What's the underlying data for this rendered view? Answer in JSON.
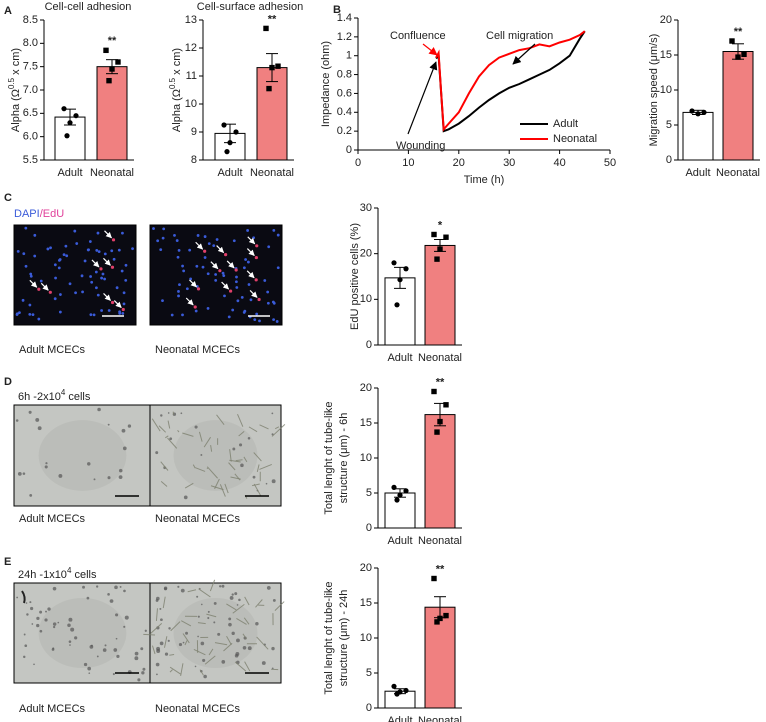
{
  "panel_labels": [
    "A",
    "B",
    "C",
    "D",
    "E"
  ],
  "chart_data": [
    {
      "type": "bar",
      "title": "Cell-cell adhesion",
      "y_label": [
        "Alpha (Ω",
        "0.5",
        " x cm)"
      ],
      "categories": [
        "Adult",
        "Neonatal"
      ],
      "values": [
        6.42,
        7.5
      ],
      "errors": [
        0.17,
        0.15
      ],
      "points": [
        [
          6.6,
          6.45,
          6.3,
          6.02
        ],
        [
          7.85,
          7.6,
          7.45,
          7.2
        ]
      ],
      "colors": [
        "#ffffff",
        "#f08080"
      ],
      "ylim": [
        5.5,
        8.5
      ],
      "yticks": [
        5.5,
        {
          "value": 6,
          "label": "6.0"
        },
        6.5,
        {
          "value": 7,
          "label": "7.0"
        },
        7.5,
        {
          "value": 8,
          "label": "8.0"
        },
        8.5
      ],
      "significance": "**"
    },
    {
      "type": "bar",
      "title": "Cell-surface adhesion",
      "y_label": [
        "Alpha (Ω",
        "0.5",
        " x cm)"
      ],
      "categories": [
        "Adult",
        "Neonatal"
      ],
      "values": [
        8.95,
        11.3
      ],
      "errors": [
        0.33,
        0.5
      ],
      "points": [
        [
          9.25,
          9.0,
          8.62,
          8.3
        ],
        [
          12.7,
          11.35,
          11.3,
          10.55
        ]
      ],
      "colors": [
        "#ffffff",
        "#f08080"
      ],
      "ylim": [
        8,
        13
      ],
      "yticks": [
        8,
        9,
        10,
        11,
        12,
        13
      ],
      "significance": "**"
    },
    {
      "type": "line",
      "x_label": "Time (h)",
      "y_label": "Impedance (ohm)",
      "x": [
        15.5,
        16,
        16.5,
        17,
        18,
        20,
        22,
        24,
        26,
        28,
        30,
        32,
        34,
        36,
        38,
        40,
        42,
        44,
        45
      ],
      "series": [
        {
          "name": "Adult",
          "color": "#000000",
          "values": [
            0.97,
            1.0,
            0.6,
            0.2,
            0.22,
            0.28,
            0.36,
            0.45,
            0.53,
            0.6,
            0.66,
            0.7,
            0.75,
            0.8,
            0.85,
            0.92,
            1.0,
            1.18,
            1.26
          ]
        },
        {
          "name": "Neonatal",
          "color": "#ff0000",
          "values": [
            0.98,
            1.03,
            0.6,
            0.22,
            0.28,
            0.4,
            0.6,
            0.78,
            0.9,
            0.98,
            1.02,
            1.06,
            1.08,
            1.12,
            1.1,
            1.14,
            1.17,
            1.22,
            1.26
          ]
        }
      ],
      "xlim": [
        0,
        50
      ],
      "xticks": [
        0,
        10,
        20,
        30,
        40,
        50
      ],
      "ylim": [
        0,
        1.4
      ],
      "yticks": [
        0,
        0.2,
        0.4,
        0.6,
        0.8,
        1,
        1.2,
        1.4
      ],
      "annotations": [
        "Confluence",
        "Cell migration",
        "Wounding"
      ],
      "legend": "lower right"
    },
    {
      "type": "bar",
      "y_label": "Migration speed (μm/s)",
      "categories": [
        "Adult",
        "Neonatal"
      ],
      "values": [
        6.8,
        15.5
      ],
      "errors": [
        0.3,
        1.1
      ],
      "points": [
        [
          7.0,
          6.8,
          6.6
        ],
        [
          17.0,
          15.1,
          14.7
        ]
      ],
      "colors": [
        "#ffffff",
        "#f08080"
      ],
      "ylim": [
        0,
        20
      ],
      "yticks": [
        0,
        5,
        10,
        15,
        20
      ],
      "significance": "**"
    },
    {
      "type": "bar",
      "y_label": "EdU positive cells (%)",
      "categories": [
        "Adult",
        "Neonatal"
      ],
      "values": [
        14.7,
        21.8
      ],
      "errors": [
        2.3,
        1.3
      ],
      "points": [
        [
          18,
          16.7,
          14.3,
          8.8
        ],
        [
          24.2,
          23.6,
          21,
          18.8
        ]
      ],
      "colors": [
        "#ffffff",
        "#f08080"
      ],
      "ylim": [
        0,
        30
      ],
      "yticks": [
        0,
        10,
        20,
        30
      ],
      "significance": "*"
    },
    {
      "type": "bar",
      "y_label_lines": [
        "Total lenght of tube-like",
        "structure (μm) - 6h"
      ],
      "categories": [
        "Adult",
        "Neonatal"
      ],
      "values": [
        5.0,
        16.2
      ],
      "errors": [
        0.6,
        1.6
      ],
      "points": [
        [
          5.8,
          5.3,
          4.7,
          4.0
        ],
        [
          19.5,
          17.6,
          15.2,
          13.7
        ]
      ],
      "colors": [
        "#ffffff",
        "#f08080"
      ],
      "ylim": [
        0,
        20
      ],
      "yticks": [
        0,
        5,
        10,
        15,
        20
      ],
      "significance": "**"
    },
    {
      "type": "bar",
      "y_label_lines": [
        "Total lenght of tube-like",
        "structure (μm) - 24h"
      ],
      "categories": [
        "Adult",
        "Neonatal"
      ],
      "values": [
        2.4,
        14.4
      ],
      "errors": [
        0.35,
        1.5
      ],
      "points": [
        [
          3.1,
          2.5,
          2.3,
          2.0
        ],
        [
          18.5,
          13.2,
          12.8,
          12.3
        ]
      ],
      "colors": [
        "#ffffff",
        "#f08080"
      ],
      "ylim": [
        0,
        20
      ],
      "yticks": [
        0,
        5,
        10,
        15,
        20
      ],
      "significance": "**"
    }
  ],
  "images": [
    {
      "stain": [
        "DAPI",
        "/EdU"
      ],
      "captions": [
        "Adult MCECs",
        "Neonatal MCECs"
      ]
    },
    {
      "title": [
        "6h -2x10",
        "4",
        " cells"
      ],
      "captions": [
        "Adult MCECs",
        "Neonatal MCECs"
      ]
    },
    {
      "title": [
        "24h -1x10",
        "4",
        " cells"
      ],
      "captions": [
        "Adult MCECs",
        "Neonatal MCECs"
      ]
    }
  ]
}
